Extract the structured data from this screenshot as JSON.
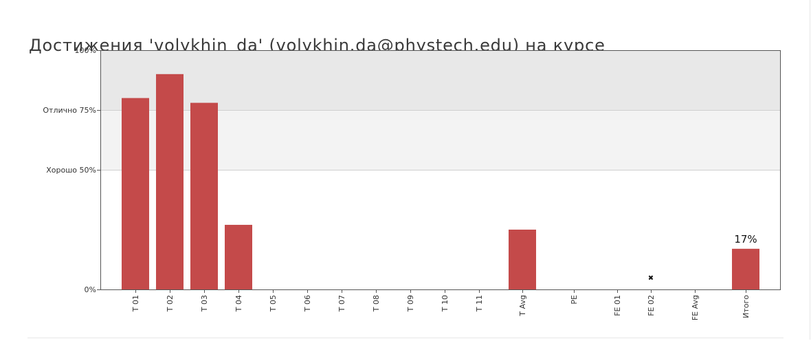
{
  "page": {
    "title": "Достижения 'volykhin_da' (volykhin.da@phystech.edu) на курсе"
  },
  "colors": {
    "bar": "#c44a4a",
    "excellent_band": "#e8e8e8",
    "good_band": "#f3f3f3",
    "marker": "#111111"
  },
  "chart_data": {
    "type": "bar",
    "title": "",
    "xlabel": "",
    "ylabel": "",
    "ylim": [
      0,
      100
    ],
    "grid": false,
    "y_ticks": [
      {
        "value": 0,
        "label": "0%"
      },
      {
        "value": 50,
        "label": "Хорошо 50%"
      },
      {
        "value": 75,
        "label": "Отлично 75%"
      },
      {
        "value": 100,
        "label": "100%"
      }
    ],
    "bands": [
      {
        "name": "Отлично",
        "from": 75,
        "to": 100
      },
      {
        "name": "Хорошо",
        "from": 50,
        "to": 75
      }
    ],
    "categories": [
      "T 01",
      "T 02",
      "T 03",
      "T 04",
      "T 05",
      "T 06",
      "T 07",
      "T 08",
      "T 09",
      "T 10",
      "T 11",
      "T Avg",
      "PE",
      "FE 01",
      "FE 02",
      "FE Avg",
      "Итого"
    ],
    "values": [
      80,
      90,
      78,
      27,
      0,
      0,
      0,
      0,
      0,
      0,
      0,
      25,
      0,
      0,
      null,
      0,
      17
    ],
    "markers": [
      {
        "category": "FE 02",
        "value": 5,
        "symbol": "✖"
      }
    ],
    "data_labels": [
      {
        "category": "Итого",
        "label": "17%"
      }
    ]
  }
}
